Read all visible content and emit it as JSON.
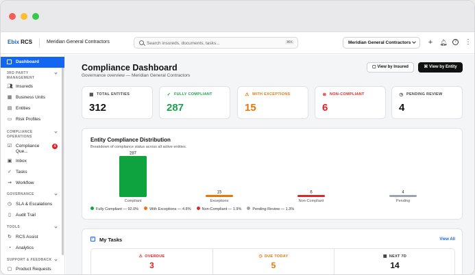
{
  "topbar": {
    "brand_prefix": "Ebix",
    "brand_suffix": "RCS",
    "company": "Meridian General Contractors",
    "search_placeholder": "Search insureds, documents, tasks...",
    "search_shortcut": "⌘K",
    "entity_selector": "Meridian General Contractors"
  },
  "sidebar": {
    "active": "Dashboard",
    "sections": [
      {
        "title": "3RD PARTY MANAGEMENT",
        "items": [
          {
            "label": "Insureds",
            "icon": "users-icon"
          },
          {
            "label": "Business Units",
            "icon": "building-icon"
          },
          {
            "label": "Entities",
            "icon": "entities-icon"
          },
          {
            "label": "Risk Profiles",
            "icon": "document-icon"
          }
        ]
      },
      {
        "title": "COMPLIANCE OPERATIONS",
        "items": [
          {
            "label": "Compliance Que...",
            "icon": "checklist-icon",
            "badge": "4"
          },
          {
            "label": "Inbox",
            "icon": "inbox-icon"
          },
          {
            "label": "Tasks",
            "icon": "check-icon"
          },
          {
            "label": "Workflow",
            "icon": "workflow-icon"
          }
        ]
      },
      {
        "title": "GOVERNANCE",
        "items": [
          {
            "label": "SLA & Escalations",
            "icon": "clock-icon"
          },
          {
            "label": "Audit Trail",
            "icon": "audit-icon"
          }
        ]
      },
      {
        "title": "TOOLS",
        "items": [
          {
            "label": "RCS Assist",
            "icon": "assist-icon"
          },
          {
            "label": "Analytics",
            "icon": "analytics-icon"
          }
        ]
      },
      {
        "title": "SUPPORT & FEEDBACK",
        "items": [
          {
            "label": "Product Requests",
            "icon": "request-icon"
          }
        ]
      }
    ]
  },
  "header": {
    "title": "Compliance Dashboard",
    "subtitle": "Governance overview — Meridian General Contractors",
    "view_insured": "View by Insured",
    "view_entity": "View by Entity"
  },
  "stats": [
    {
      "label": "TOTAL ENTITIES",
      "value": "312",
      "color": "#111111",
      "icon": "entities-icon"
    },
    {
      "label": "FULLY COMPLIANT",
      "value": "287",
      "color": "#18a34a",
      "icon": "check-circle-icon"
    },
    {
      "label": "WITH EXCEPTIONS",
      "value": "15",
      "color": "#e8750a",
      "icon": "warning-icon"
    },
    {
      "label": "NON-COMPLIANT",
      "value": "6",
      "color": "#e02424",
      "icon": "x-circle-icon"
    },
    {
      "label": "PENDING REVIEW",
      "value": "4",
      "color": "#111111",
      "icon": "clock-icon"
    }
  ],
  "distribution": {
    "title": "Entity Compliance Distribution",
    "subtitle": "Breakdown of compliance status across all active entities."
  },
  "chart_data": {
    "type": "bar",
    "categories": [
      "Compliant",
      "Exceptions",
      "Non-Compliant",
      "Pending"
    ],
    "values": [
      287,
      15,
      6,
      4
    ],
    "colors": [
      "#0fa33f",
      "#e8750a",
      "#e02424",
      "#9ca3af"
    ],
    "legend": [
      "Fully Compliant — 92.0%",
      "With Exceptions — 4.8%",
      "Non-Compliant — 1.9%",
      "Pending Review — 1.3%"
    ],
    "legend_placement": "bottom",
    "grid": false
  },
  "tasks": {
    "title": "My Tasks",
    "view_all": "View All",
    "cells": [
      {
        "label": "OVERDUE",
        "value": "3",
        "color": "#e02424",
        "icon": "warning-icon"
      },
      {
        "label": "DUE TODAY",
        "value": "5",
        "color": "#e8750a",
        "icon": "clock-icon"
      },
      {
        "label": "NEXT 7D",
        "value": "14",
        "color": "#111111",
        "icon": "calendar-icon"
      }
    ]
  }
}
